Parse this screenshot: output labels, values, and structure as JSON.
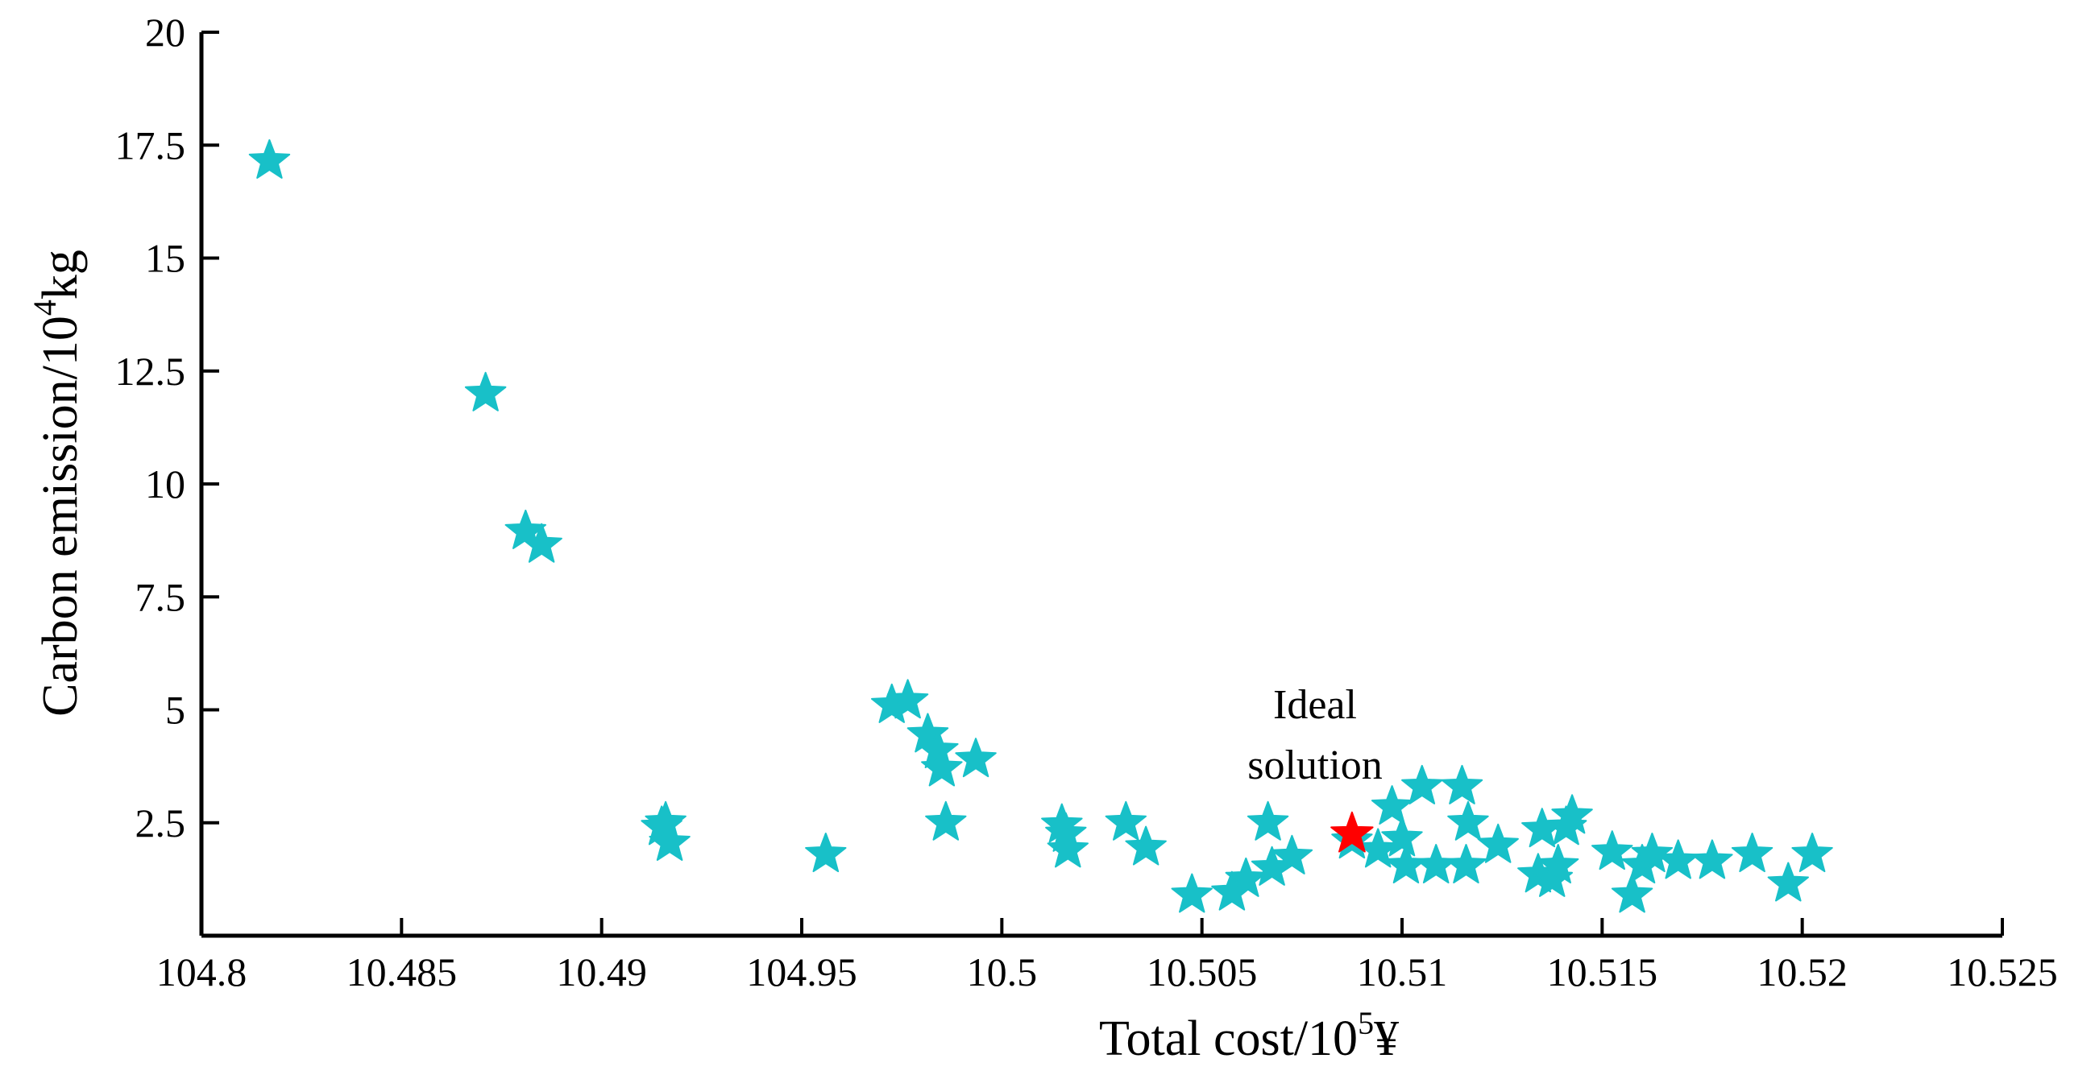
{
  "chart_data": {
    "type": "scatter",
    "xlabel": "Total cost/10",
    "xlabel_sup": "5",
    "xlabel_unit": "¥",
    "ylabel": "Carbon emission/10",
    "ylabel_sup": "4",
    "ylabel_unit": "kg",
    "xlim": [
      0,
      9
    ],
    "ylim": [
      0,
      20
    ],
    "x_tick_labels": [
      "104.8",
      "10.485",
      "10.49",
      "104.95",
      "10.5",
      "10.505",
      "10.51",
      "10.515",
      "10.52",
      "10.525"
    ],
    "y_ticks": [
      2.5,
      5,
      7.5,
      10,
      12.5,
      15,
      17.5,
      20
    ],
    "y_tick_labels": [
      "2.5",
      "5",
      "7.5",
      "10",
      "12.5",
      "15",
      "17.5",
      "20"
    ],
    "marker_color": "#18c0c8",
    "ideal_color": "#ff0000",
    "annotation": [
      "Ideal",
      "solution"
    ],
    "series": [
      {
        "marker": "star",
        "points": [
          [
            0.34,
            17.15
          ],
          [
            1.42,
            12.0
          ],
          [
            1.62,
            8.95
          ],
          [
            1.7,
            8.65
          ],
          [
            2.3,
            2.4
          ],
          [
            2.32,
            2.5
          ],
          [
            2.34,
            2.05
          ],
          [
            3.12,
            1.8
          ],
          [
            3.45,
            5.1
          ],
          [
            3.53,
            5.2
          ],
          [
            3.63,
            4.45
          ],
          [
            3.68,
            4.1
          ],
          [
            3.7,
            3.7
          ],
          [
            3.72,
            2.5
          ],
          [
            3.87,
            3.9
          ],
          [
            4.3,
            2.45
          ],
          [
            4.32,
            2.25
          ],
          [
            4.33,
            1.9
          ],
          [
            4.62,
            2.5
          ],
          [
            4.72,
            1.95
          ],
          [
            4.95,
            0.9
          ],
          [
            5.15,
            0.95
          ],
          [
            5.22,
            1.25
          ],
          [
            5.33,
            2.5
          ],
          [
            5.35,
            1.5
          ],
          [
            5.45,
            1.75
          ],
          [
            5.75,
            2.1
          ],
          [
            5.88,
            1.9
          ],
          [
            5.95,
            2.85
          ],
          [
            6.0,
            2.15
          ],
          [
            6.02,
            1.55
          ],
          [
            6.1,
            3.3
          ],
          [
            6.17,
            1.55
          ],
          [
            6.3,
            3.3
          ],
          [
            6.32,
            1.55
          ],
          [
            6.33,
            2.5
          ],
          [
            6.48,
            2.0
          ],
          [
            6.68,
            1.35
          ],
          [
            6.7,
            2.35
          ],
          [
            6.75,
            1.25
          ],
          [
            6.78,
            1.55
          ],
          [
            6.82,
            2.4
          ],
          [
            6.85,
            2.65
          ],
          [
            7.05,
            1.85
          ],
          [
            7.15,
            0.9
          ],
          [
            7.2,
            1.55
          ],
          [
            7.25,
            1.8
          ],
          [
            7.38,
            1.65
          ],
          [
            7.55,
            1.65
          ],
          [
            7.75,
            1.8
          ],
          [
            7.93,
            1.15
          ],
          [
            8.05,
            1.8
          ]
        ]
      },
      {
        "name": "Ideal solution",
        "marker": "star",
        "points": [
          [
            5.75,
            2.25
          ]
        ]
      }
    ]
  }
}
